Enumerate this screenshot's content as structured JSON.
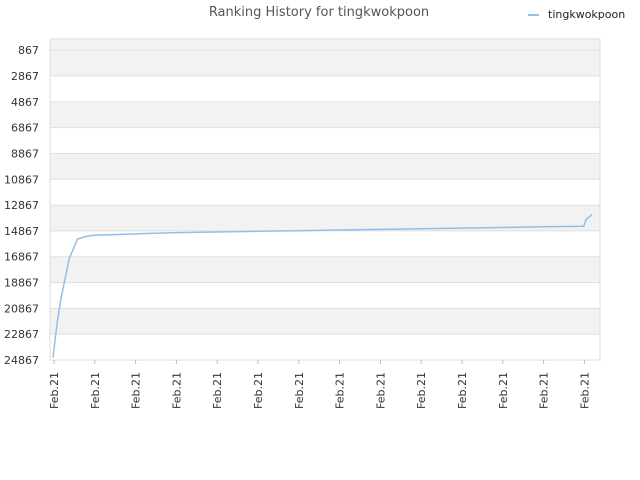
{
  "chart_data": {
    "type": "line",
    "title": "Ranking History for tingkwokpoon",
    "xlabel": "",
    "ylabel": "",
    "y_inverted": true,
    "ylim": [
      24867,
      0
    ],
    "y_ticks": [
      867,
      2867,
      4867,
      6867,
      8867,
      10867,
      12867,
      14867,
      16867,
      18867,
      20867,
      22867,
      24867
    ],
    "x_tick_labels": [
      "Feb.21",
      "Feb.21",
      "Feb.21",
      "Feb.21",
      "Feb.21",
      "Feb.21",
      "Feb.21",
      "Feb.21",
      "Feb.21",
      "Feb.21",
      "Feb.21",
      "Feb.21",
      "Feb.21",
      "Feb.21"
    ],
    "legend": {
      "position": "top-right",
      "entries": [
        "tingkwokpoon"
      ]
    },
    "colors": {
      "series": "#90c0ea",
      "band": "#f2f2f2",
      "grid": "#e0e0e0"
    },
    "series": [
      {
        "name": "tingkwokpoon",
        "x": [
          0,
          0.1,
          0.2,
          0.3,
          0.4,
          0.6,
          0.8,
          1.0,
          1.5,
          2.0,
          2.5,
          3.0,
          4.0,
          5.0,
          6.0,
          7.0,
          8.0,
          9.0,
          10.0,
          11.0,
          12.0,
          13.0,
          13.05,
          13.2
        ],
        "y": [
          24700,
          22000,
          20000,
          18500,
          17000,
          15500,
          15300,
          15200,
          15150,
          15100,
          15050,
          15000,
          14950,
          14900,
          14850,
          14800,
          14750,
          14700,
          14650,
          14600,
          14550,
          14500,
          14000,
          13600
        ]
      }
    ]
  }
}
